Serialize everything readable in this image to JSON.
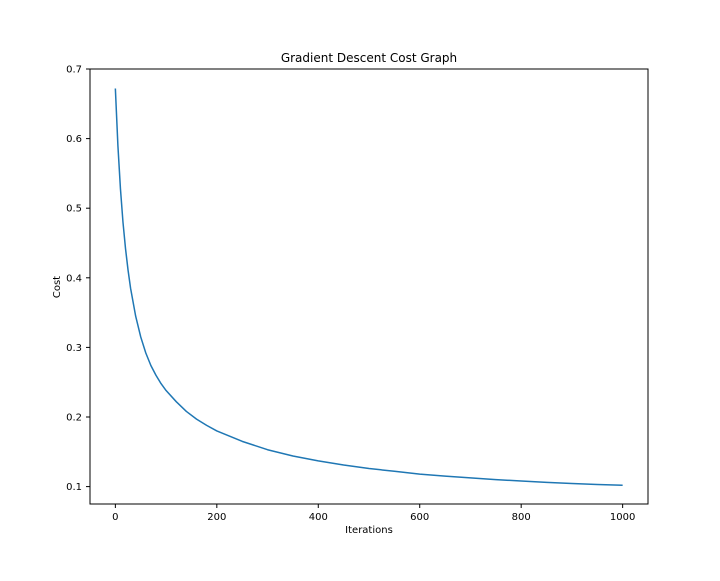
{
  "chart_data": {
    "type": "line",
    "title": "Gradient Descent Cost Graph",
    "xlabel": "Iterations",
    "ylabel": "Cost",
    "xlim": [
      -50,
      1050
    ],
    "ylim": [
      0.075,
      0.7
    ],
    "xticks": [
      0,
      200,
      400,
      600,
      800,
      1000
    ],
    "yticks": [
      0.1,
      0.2,
      0.3,
      0.4,
      0.5,
      0.6,
      0.7
    ],
    "xtick_labels": [
      "0",
      "200",
      "400",
      "600",
      "800",
      "1000"
    ],
    "ytick_labels": [
      "0.1",
      "0.2",
      "0.3",
      "0.4",
      "0.5",
      "0.6",
      "0.7"
    ],
    "grid": false,
    "colors": {
      "line": "#1f77b4",
      "axes": "#000000",
      "background": "#ffffff"
    },
    "series": [
      {
        "x": [
          0,
          5,
          10,
          15,
          20,
          25,
          30,
          40,
          50,
          60,
          70,
          80,
          90,
          100,
          120,
          140,
          160,
          180,
          200,
          250,
          300,
          350,
          400,
          450,
          500,
          550,
          600,
          650,
          700,
          750,
          800,
          850,
          900,
          950,
          1000
        ],
        "values": [
          0.672,
          0.59,
          0.528,
          0.48,
          0.442,
          0.411,
          0.385,
          0.345,
          0.315,
          0.292,
          0.274,
          0.26,
          0.248,
          0.238,
          0.222,
          0.208,
          0.197,
          0.188,
          0.18,
          0.165,
          0.153,
          0.144,
          0.137,
          0.131,
          0.126,
          0.122,
          0.118,
          0.115,
          0.1125,
          0.11,
          0.108,
          0.106,
          0.1045,
          0.103,
          0.102
        ]
      }
    ]
  }
}
